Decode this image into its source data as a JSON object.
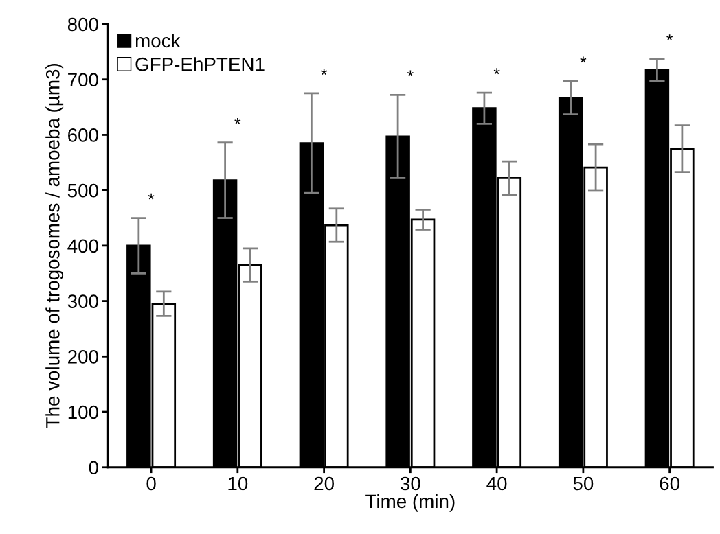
{
  "chart_data": {
    "type": "bar",
    "xlabel": "Time (min)",
    "ylabel": "The volume of trogosomes / amoeba (µm3)",
    "categories": [
      "0",
      "10",
      "20",
      "30",
      "40",
      "50",
      "60"
    ],
    "series": [
      {
        "name": "mock",
        "color": "#000000",
        "values": [
          400,
          518,
          585,
          597,
          648,
          667,
          717
        ],
        "errors": [
          50,
          68,
          90,
          75,
          28,
          30,
          20
        ]
      },
      {
        "name": "GFP-EhPTEN1",
        "color": "#ffffff",
        "values": [
          295,
          365,
          437,
          447,
          522,
          541,
          575
        ],
        "errors": [
          22,
          30,
          30,
          18,
          30,
          42,
          42
        ]
      }
    ],
    "ylim": [
      0,
      800
    ],
    "yticks": [
      0,
      100,
      200,
      300,
      400,
      500,
      600,
      700,
      800
    ],
    "grid": false,
    "legend": "top left",
    "annotations": [
      "*",
      "*",
      "*",
      "*",
      "*",
      "*",
      "*"
    ]
  }
}
